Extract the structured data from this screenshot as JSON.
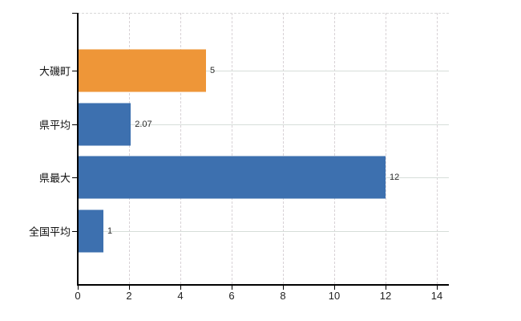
{
  "chart": {
    "background_color": "#ffffff",
    "axis_color": "#000000",
    "horizontal_gridline_color": "#d6ded9",
    "vertical_gridline_color": "#d8d2d6",
    "highlight_bar_color": "#ee9638",
    "default_bar_color": "#3d70af",
    "value_label_color": "#2b2b2b"
  },
  "chart_data": {
    "type": "bar",
    "orientation": "horizontal",
    "title": "",
    "xlabel": "",
    "ylabel": "",
    "legend": "none",
    "grid": "on",
    "categories": [
      "大磯町",
      "県平均",
      "県最大",
      "全国平均"
    ],
    "values": [
      5,
      2.07,
      12,
      1
    ],
    "value_labels": [
      "5",
      "2.07",
      "12",
      "1"
    ],
    "bar_colors": [
      "#ee9638",
      "#3d70af",
      "#3d70af",
      "#3d70af"
    ],
    "xlim": [
      0,
      14
    ],
    "x_ticks": [
      0,
      2,
      4,
      6,
      8,
      10,
      12,
      14
    ],
    "x_tick_labels": [
      "0",
      "2",
      "4",
      "6",
      "8",
      "10",
      "12",
      "14"
    ]
  }
}
